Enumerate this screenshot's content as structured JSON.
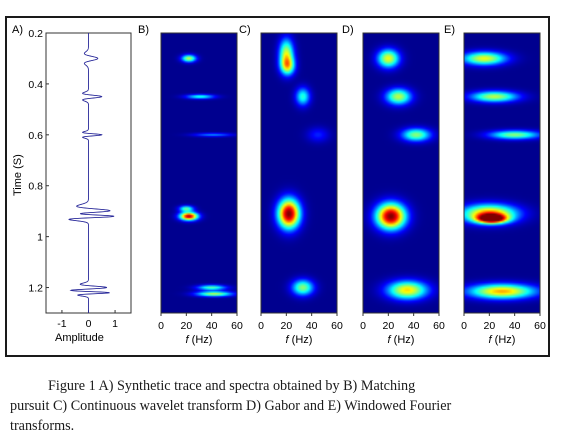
{
  "figure": {
    "panel_labels": [
      "A)",
      "B)",
      "C)",
      "D)",
      "E)"
    ],
    "trace_panel": {
      "ylabel": "Time (S)",
      "xlabel": "Amplitude",
      "y_ticks": [
        "0.2",
        "0.4",
        "0.6",
        "0.8",
        "1",
        "1.2"
      ],
      "x_ticks": [
        "-1",
        "0",
        "1"
      ]
    },
    "spectra_xlabel_italic": "f",
    "spectra_xlabel_rest": " (Hz)",
    "spectra_x_ticks": [
      "0",
      "20",
      "40",
      "60"
    ],
    "colors": {
      "background": "#00008f",
      "frame": "#1a1a1a",
      "trace": "#2a2a9a"
    }
  },
  "chart_data": [
    {
      "type": "line",
      "panel": "A",
      "title": "",
      "xlabel": "Amplitude",
      "ylabel": "Time (S)",
      "ylim": [
        0.2,
        1.3
      ],
      "xlim": [
        -1.6,
        1.6
      ],
      "events": [
        {
          "time": 0.3,
          "freq_hz": 20,
          "amplitude": 0.35
        },
        {
          "time": 0.45,
          "freq_hz": 30,
          "amplitude": 0.5
        },
        {
          "time": 0.6,
          "freq_hz": 40,
          "amplitude": 0.5
        },
        {
          "time": 0.9,
          "freq_hz": 20,
          "amplitude": 1.0
        },
        {
          "time": 0.92,
          "freq_hz": 30,
          "amplitude": 1.4
        },
        {
          "time": 1.2,
          "freq_hz": 30,
          "amplitude": 0.7
        },
        {
          "time": 1.22,
          "freq_hz": 40,
          "amplitude": 0.9
        }
      ]
    },
    {
      "type": "heatmap",
      "panel": "B",
      "xlabel": "f (Hz)",
      "xlim": [
        0,
        60
      ],
      "ylim": [
        0.2,
        1.3
      ],
      "blobs": [
        {
          "t": 0.3,
          "f": 22,
          "st": 0.01,
          "sf": 4,
          "v": 0.55
        },
        {
          "t": 0.45,
          "f": 31,
          "st": 0.006,
          "sf": 8,
          "v": 0.4
        },
        {
          "t": 0.6,
          "f": 41,
          "st": 0.005,
          "sf": 11,
          "v": 0.25
        },
        {
          "t": 0.89,
          "f": 20,
          "st": 0.008,
          "sf": 4,
          "v": 0.45
        },
        {
          "t": 0.92,
          "f": 22,
          "st": 0.011,
          "sf": 5,
          "v": 0.95
        },
        {
          "t": 1.2,
          "f": 40,
          "st": 0.007,
          "sf": 8,
          "v": 0.45
        },
        {
          "t": 1.225,
          "f": 42,
          "st": 0.007,
          "sf": 10,
          "v": 0.55
        }
      ]
    },
    {
      "type": "heatmap",
      "panel": "C",
      "xlabel": "f (Hz)",
      "xlim": [
        0,
        60
      ],
      "ylim": [
        0.2,
        1.3
      ],
      "blobs": [
        {
          "t": 0.28,
          "f": 20,
          "st": 0.04,
          "sf": 4,
          "v": 0.55
        },
        {
          "t": 0.33,
          "f": 21,
          "st": 0.025,
          "sf": 4,
          "v": 0.5
        },
        {
          "t": 0.45,
          "f": 33,
          "st": 0.025,
          "sf": 4,
          "v": 0.4
        },
        {
          "t": 0.6,
          "f": 45,
          "st": 0.02,
          "sf": 6,
          "v": 0.15
        },
        {
          "t": 0.91,
          "f": 22,
          "st": 0.04,
          "sf": 6,
          "v": 1.0
        },
        {
          "t": 1.2,
          "f": 33,
          "st": 0.022,
          "sf": 6,
          "v": 0.5
        }
      ]
    },
    {
      "type": "heatmap",
      "panel": "D",
      "xlabel": "f (Hz)",
      "xlim": [
        0,
        60
      ],
      "ylim": [
        0.2,
        1.3
      ],
      "blobs": [
        {
          "t": 0.3,
          "f": 20,
          "st": 0.025,
          "sf": 6,
          "v": 0.6
        },
        {
          "t": 0.45,
          "f": 28,
          "st": 0.022,
          "sf": 7,
          "v": 0.55
        },
        {
          "t": 0.6,
          "f": 42,
          "st": 0.018,
          "sf": 8,
          "v": 0.5
        },
        {
          "t": 0.92,
          "f": 22,
          "st": 0.035,
          "sf": 8,
          "v": 1.0
        },
        {
          "t": 1.21,
          "f": 35,
          "st": 0.025,
          "sf": 11,
          "v": 0.65
        }
      ]
    },
    {
      "type": "heatmap",
      "panel": "E",
      "xlabel": "f (Hz)",
      "xlim": [
        0,
        60
      ],
      "ylim": [
        0.2,
        1.3
      ],
      "blobs": [
        {
          "t": 0.3,
          "f": 16,
          "st": 0.018,
          "sf": 12,
          "v": 0.6
        },
        {
          "t": 0.45,
          "f": 24,
          "st": 0.015,
          "sf": 13,
          "v": 0.55
        },
        {
          "t": 0.6,
          "f": 40,
          "st": 0.012,
          "sf": 14,
          "v": 0.5
        },
        {
          "t": 0.91,
          "f": 20,
          "st": 0.025,
          "sf": 15,
          "v": 0.75
        },
        {
          "t": 0.93,
          "f": 22,
          "st": 0.012,
          "sf": 8,
          "v": 0.9
        },
        {
          "t": 1.215,
          "f": 30,
          "st": 0.02,
          "sf": 18,
          "v": 0.7
        }
      ]
    }
  ],
  "caption": {
    "line1": "Figure 1 A) Synthetic trace and spectra obtained by B) Matching",
    "line2": "pursuit C) Continuous wavelet transform D) Gabor and E) Windowed Fourier",
    "line3": "transforms."
  }
}
